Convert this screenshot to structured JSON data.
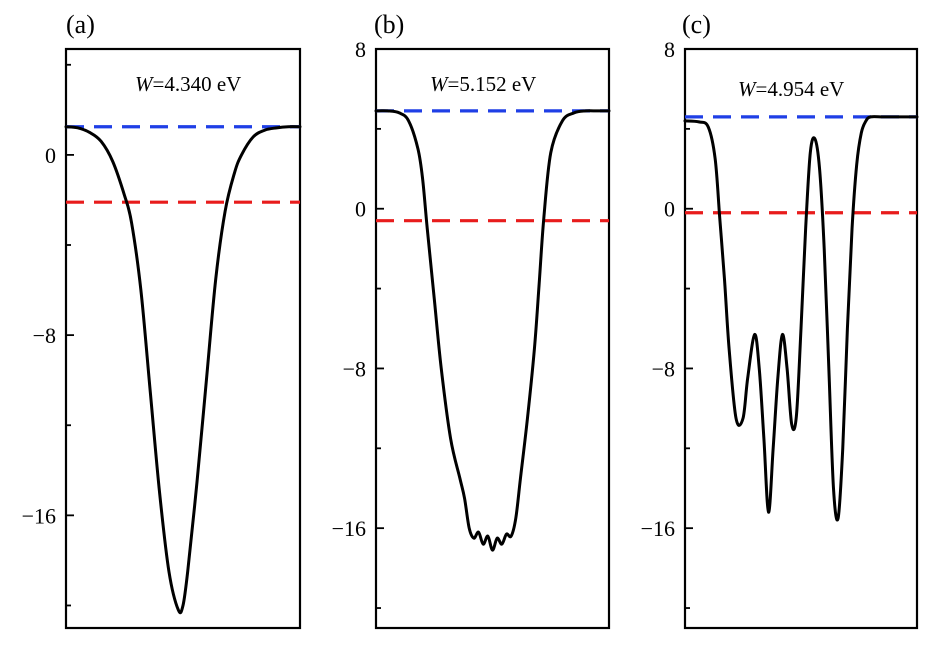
{
  "chart_data": [
    {
      "type": "line",
      "panel_label": "(a)",
      "work_function_symbol": "W",
      "work_function_value": "=4.340 eV",
      "ylim": [
        -21,
        4.7
      ],
      "yticks": [
        0,
        -8,
        -16
      ],
      "ytick_labels": [
        "0",
        "−8",
        "−16"
      ],
      "xlim": [
        0,
        1
      ],
      "vacuum_level": 1.25,
      "fermi_level": -2.1,
      "vacuum_color": "#1f3fe6",
      "fermi_color": "#e81c1c",
      "x": [
        0,
        0.05,
        0.1,
        0.15,
        0.2,
        0.25,
        0.28,
        0.32,
        0.36,
        0.4,
        0.44,
        0.48,
        0.5,
        0.52,
        0.56,
        0.6,
        0.64,
        0.68,
        0.72,
        0.75,
        0.8,
        0.85,
        0.9,
        0.95,
        1
      ],
      "y": [
        1.25,
        1.2,
        1.0,
        0.6,
        -0.3,
        -1.8,
        -3.0,
        -6.0,
        -10.5,
        -15.0,
        -18.5,
        -20.2,
        -20.0,
        -18.5,
        -14.5,
        -10.0,
        -5.5,
        -2.5,
        -0.8,
        0.0,
        0.8,
        1.1,
        1.2,
        1.25,
        1.25
      ]
    },
    {
      "type": "line",
      "panel_label": "(b)",
      "work_function_symbol": "W",
      "work_function_value": "=5.152 eV",
      "ylim": [
        -21,
        8
      ],
      "yticks": [
        8,
        0,
        -8,
        -16
      ],
      "ytick_labels": [
        "8",
        "0",
        "−8",
        "−16"
      ],
      "xlim": [
        0,
        1
      ],
      "vacuum_level": 4.9,
      "fermi_level": -0.6,
      "vacuum_color": "#1f3fe6",
      "fermi_color": "#e81c1c",
      "x": [
        0,
        0.05,
        0.1,
        0.14,
        0.18,
        0.2,
        0.22,
        0.25,
        0.28,
        0.32,
        0.36,
        0.38,
        0.4,
        0.42,
        0.44,
        0.46,
        0.48,
        0.5,
        0.52,
        0.54,
        0.56,
        0.58,
        0.6,
        0.62,
        0.65,
        0.68,
        0.7,
        0.72,
        0.75,
        0.8,
        0.85,
        0.9,
        0.95,
        1
      ],
      "y": [
        4.9,
        4.9,
        4.8,
        4.4,
        3.0,
        1.5,
        -1.0,
        -4.5,
        -8.0,
        -11.5,
        -13.5,
        -14.5,
        -16.0,
        -16.5,
        -16.2,
        -16.8,
        -16.4,
        -17.1,
        -16.5,
        -16.8,
        -16.3,
        -16.4,
        -15.5,
        -13.5,
        -10.5,
        -7.0,
        -3.8,
        -0.5,
        2.8,
        4.4,
        4.8,
        4.9,
        4.9,
        4.9
      ]
    },
    {
      "type": "line",
      "panel_label": "(c)",
      "work_function_symbol": "W",
      "work_function_value": "=4.954 eV",
      "ylim": [
        -21,
        8
      ],
      "yticks": [
        8,
        0,
        -8,
        -16
      ],
      "ytick_labels": [
        "8",
        "0",
        "−8",
        "−16"
      ],
      "xlim": [
        0,
        1
      ],
      "vacuum_level": 4.6,
      "fermi_level": -0.2,
      "vacuum_color": "#1f3fe6",
      "fermi_color": "#e81c1c",
      "x": [
        0,
        0.06,
        0.1,
        0.13,
        0.15,
        0.17,
        0.19,
        0.22,
        0.25,
        0.27,
        0.3,
        0.32,
        0.34,
        0.36,
        0.38,
        0.4,
        0.42,
        0.44,
        0.46,
        0.48,
        0.5,
        0.52,
        0.54,
        0.56,
        0.58,
        0.6,
        0.62,
        0.64,
        0.66,
        0.68,
        0.7,
        0.72,
        0.74,
        0.76,
        0.78,
        0.8,
        0.85,
        0.9,
        0.95,
        1
      ],
      "y": [
        4.4,
        4.35,
        4.1,
        2.5,
        -0.5,
        -3.5,
        -7.0,
        -10.5,
        -10.5,
        -8.5,
        -6.3,
        -8.0,
        -11.5,
        -15.2,
        -12.0,
        -8.5,
        -6.3,
        -8.0,
        -10.8,
        -10.4,
        -6.0,
        -1.0,
        2.8,
        3.5,
        2.0,
        -2.0,
        -8.0,
        -14.0,
        -15.5,
        -12.0,
        -6.0,
        -1.0,
        2.2,
        3.8,
        4.4,
        4.6,
        4.6,
        4.6,
        4.6,
        4.6
      ]
    }
  ]
}
